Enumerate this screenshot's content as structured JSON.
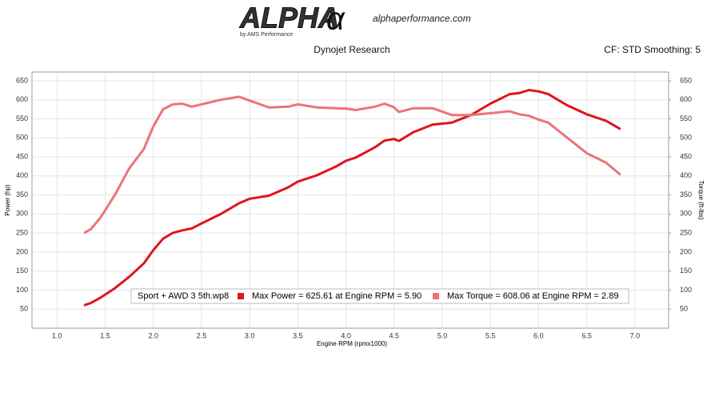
{
  "header": {
    "logo": "ALPHA",
    "logo_symbol": "α",
    "logo_sub": "by AMS Performance",
    "website": "alphaperformance.com",
    "source": "Dynojet Research",
    "settings": "CF: STD Smoothing: 5"
  },
  "chart_data": {
    "type": "line",
    "x_label": "Engine RPM (rpmx1000)",
    "y_label": "Power (hp)",
    "y2_label": "Torque (ft-lbs)",
    "legend_title": "Sport + AWD 3 5th.wp8",
    "x": [
      1.28,
      1.35,
      1.45,
      1.6,
      1.75,
      1.9,
      2.0,
      2.1,
      2.2,
      2.3,
      2.4,
      2.5,
      2.7,
      2.89,
      3.0,
      3.2,
      3.4,
      3.5,
      3.7,
      3.9,
      4.0,
      4.1,
      4.3,
      4.4,
      4.5,
      4.55,
      4.7,
      4.9,
      5.1,
      5.3,
      5.5,
      5.7,
      5.8,
      5.9,
      6.0,
      6.1,
      6.3,
      6.5,
      6.7,
      6.85
    ],
    "series": [
      {
        "name": "Max Power = 625.61 at Engine RPM = 5.90",
        "color": "#e0141e",
        "axis": "y",
        "values": [
          60,
          66,
          80,
          105,
          135,
          170,
          205,
          235,
          250,
          257,
          262,
          275,
          300,
          328,
          340,
          348,
          370,
          385,
          402,
          425,
          440,
          448,
          475,
          493,
          497,
          492,
          515,
          535,
          540,
          560,
          590,
          615,
          618,
          625.61,
          622,
          615,
          585,
          562,
          545,
          523
        ]
      },
      {
        "name": "Max Torque = 608.06 at Engine RPM = 2.89",
        "color": "#ec7479",
        "axis": "y2",
        "values": [
          250,
          260,
          290,
          350,
          420,
          470,
          530,
          575,
          588,
          590,
          582,
          588,
          600,
          608.06,
          598,
          580,
          582,
          588,
          580,
          578,
          577,
          573,
          582,
          590,
          580,
          568,
          578,
          578,
          560,
          560,
          565,
          570,
          562,
          558,
          548,
          540,
          500,
          460,
          435,
          403
        ]
      }
    ],
    "xlim": [
      0.74,
      7.35
    ],
    "xticks": [
      {
        "value": 1,
        "label": "1.0"
      },
      1.5,
      {
        "value": 2,
        "label": "2.0"
      },
      2.5,
      {
        "value": 3,
        "label": "3.0"
      },
      3.5,
      {
        "value": 4,
        "label": "4.0"
      },
      4.5,
      {
        "value": 5,
        "label": "5.0"
      },
      5.5,
      {
        "value": 6,
        "label": "6.0"
      },
      6.5,
      {
        "value": 7,
        "label": "7.0"
      }
    ],
    "ylim": [
      0,
      673
    ],
    "yticks": [
      50,
      100,
      150,
      200,
      250,
      300,
      350,
      400,
      450,
      500,
      550,
      600,
      650
    ],
    "y2lim": [
      0,
      673
    ],
    "y2ticks": [
      50,
      100,
      150,
      200,
      250,
      300,
      350,
      400,
      450,
      500,
      550,
      600,
      650
    ],
    "grid": true
  }
}
